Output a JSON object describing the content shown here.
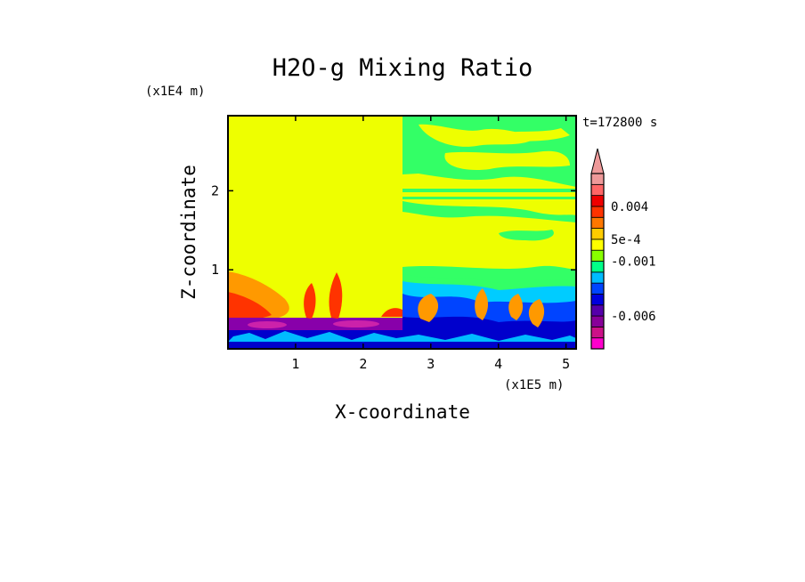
{
  "chart_data": {
    "type": "heatmap",
    "title": "H2O-g Mixing Ratio",
    "xlabel": "X-coordinate",
    "ylabel": "Z-coordinate",
    "x_unit": "(x1E5 m)",
    "y_unit": "(x1E4 m)",
    "time_label": "t=172800 s",
    "xlim": [
      0,
      5.15
    ],
    "ylim": [
      0,
      2.95
    ],
    "x_ticks": [
      1,
      2,
      3,
      4,
      5
    ],
    "y_ticks": [
      1,
      2
    ],
    "x_tick_labels": [
      "1",
      "2",
      "3",
      "4",
      "5"
    ],
    "y_tick_labels": [
      "1",
      "2"
    ],
    "colorbar": {
      "colors": [
        "#ff00cc",
        "#cc1188",
        "#880099",
        "#5500aa",
        "#0000dd",
        "#0044ff",
        "#00bbff",
        "#00ff88",
        "#88ff00",
        "#ffff00",
        "#ffcc00",
        "#ff7700",
        "#ff3300",
        "#ee0000",
        "#ff6666",
        "#ee9999"
      ],
      "tick_labels": [
        "0.004",
        "5e-4",
        "-0.001",
        "-0.006"
      ],
      "tick_bins": [
        13,
        10,
        8,
        3
      ],
      "extend_top": true
    },
    "regions": [
      {
        "name": "upper-left-uniform",
        "x": [
          0,
          2.55
        ],
        "z": [
          1.05,
          2.95
        ],
        "color": "#ffff00"
      },
      {
        "name": "upper-right-mottled",
        "x": [
          2.55,
          5.15
        ],
        "z": [
          1.1,
          2.95
        ],
        "color": "#ffff00"
      },
      {
        "name": "upper-right-green-bands",
        "x": [
          2.55,
          5.15
        ],
        "z": [
          1.5,
          2.95
        ],
        "color": "#33ff66"
      },
      {
        "name": "left-edge-orange",
        "x": [
          0,
          0.6
        ],
        "z": [
          0.35,
          1.05
        ],
        "color": "#ff8800"
      },
      {
        "name": "lower-left-purple-layer",
        "x": [
          0,
          2.55
        ],
        "z": [
          0.25,
          0.42
        ],
        "color": "#8800aa"
      },
      {
        "name": "surface-blue-layer",
        "x": [
          0,
          5.15
        ],
        "z": [
          0,
          0.3
        ],
        "color": "#0000dd"
      },
      {
        "name": "lower-right-mixed",
        "x": [
          2.55,
          5.15
        ],
        "z": [
          0.3,
          1.0
        ],
        "color": "#00ccff"
      }
    ]
  }
}
